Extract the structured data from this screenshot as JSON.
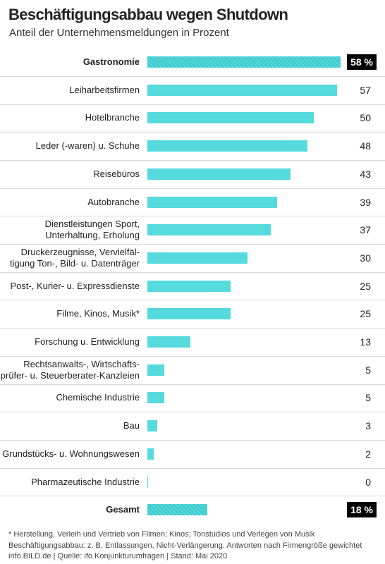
{
  "chart_data": {
    "type": "bar",
    "orientation": "horizontal",
    "title": "Beschäftigungsabbau wegen Shutdown",
    "subtitle": "Anteil der Unternehmensmeldungen in Prozent",
    "categories": [
      "Gastronomie",
      "Leiharbeitsfirmen",
      "Hotelbranche",
      "Leder (-waren) u. Schuhe",
      "Reisebüros",
      "Autobranche",
      "Dienstleistungen Sport,\nUnterhaltung, Erholung",
      "Druckerzeugnisse, Vervielfäl-\ntigung Ton-, Bild- u. Datenträger",
      "Post-, Kurier- u. Expressdienste",
      "Filme, Kinos, Musik*",
      "Forschung u. Entwicklung",
      "Rechtsanwalts-, Wirtschafts-\nprüfer- u. Steuerberater-Kanzleien",
      "Chemische Industrie",
      "Bau",
      "Grundstücks- u. Wohnungswesen",
      "Pharmazeutische Industrie",
      "Gesamt"
    ],
    "values": [
      58,
      57,
      50,
      48,
      43,
      39,
      37,
      30,
      25,
      25,
      13,
      5,
      5,
      3,
      2,
      0,
      18
    ],
    "value_labels": [
      "58 %",
      "57",
      "50",
      "48",
      "43",
      "39",
      "37",
      "30",
      "25",
      "25",
      "13",
      "5",
      "5",
      "3",
      "2",
      "0",
      "18 %"
    ],
    "highlight": [
      0,
      16
    ],
    "color": "#55dadd",
    "highlight_color": "#3fc7c9",
    "notes": [
      "* Herstellung, Verleih und Vertrieb von Filmen; Kinos; Tonstudios und Verlegen von Musik",
      "Beschäftigungsabbau: z. B. Entlassungen, Nicht-Verlängerung. Antworten nach Firmengröße gewichtet",
      "info.BILD.de | Quelle: ifo Konjunkturumfragen | Stand: Mai 2020"
    ]
  }
}
